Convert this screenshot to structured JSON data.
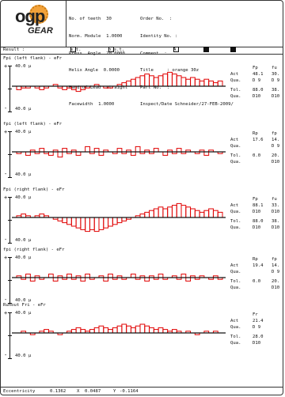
{
  "header": {
    "logo_text": "ogp",
    "logo_sub": "GEAR",
    "col1": [
      {
        "label": "No. of teeth",
        "value": "30"
      },
      {
        "label": "Norm. Module",
        "value": "1.0000"
      },
      {
        "label": "Press. Angle",
        "value": "20.0000"
      },
      {
        "label": "Helix Angle",
        "value": "0.0000"
      },
      {
        "label": "Hand of Lead",
        "value": "straight"
      },
      {
        "label": "Facewidth",
        "value": "1.0000"
      }
    ],
    "col2": [
      {
        "label": "Order No.",
        "value": ""
      },
      {
        "label": "Identity No.",
        "value": ""
      },
      {
        "label": "Comment",
        "value": ""
      },
      {
        "label": "Title",
        "value": "orange 30z"
      },
      {
        "label": "Part No.",
        "value": ""
      },
      {
        "label": "Inspect/Date",
        "value": "Schneider/27-FEB-2009/"
      }
    ]
  },
  "result_bar": {
    "label": "Result :",
    "items": [
      "s.t.",
      "n.s.t.",
      "A.",
      "V.",
      "S"
    ]
  },
  "sections": [
    {
      "title": "Fpi (left flank) - eFr",
      "scale_top": "40.0 µ",
      "scale_bot": "40.0 µ",
      "col_heads": [
        "Fp",
        "fu"
      ],
      "rows": [
        {
          "label": "Act",
          "v1": "48.1",
          "v2": "30."
        },
        {
          "label": "Qua.",
          "v1": "D 9",
          "v2": "D 9"
        },
        {
          "label": "Tol.",
          "v1": "88.0",
          "v2": "38."
        },
        {
          "label": "Qua.",
          "v1": "D10",
          "v2": "D10"
        }
      ],
      "bars": [
        -2,
        -1,
        -1,
        0,
        -1,
        -2,
        -1,
        0,
        1,
        -1,
        -2,
        -1,
        -2,
        -3,
        -2,
        -1,
        0,
        1,
        0,
        -1,
        -1,
        0,
        1,
        2,
        3,
        4,
        5,
        6,
        7,
        6,
        5,
        6,
        7,
        8,
        7,
        6,
        5,
        4,
        5,
        4,
        3,
        4,
        3,
        2,
        3
      ]
    },
    {
      "title": "fpi (left flank) - eFr",
      "scale_top": "40.0 µ",
      "scale_bot": "40.0 µ",
      "col_heads": [
        "Rp",
        "fp"
      ],
      "rows": [
        {
          "label": "Act",
          "v1": "17.6",
          "v2": "14."
        },
        {
          "label": "Qua.",
          "v1": "",
          "v2": "D 9"
        },
        {
          "label": "Tol.",
          "v1": "0.0",
          "v2": "20."
        },
        {
          "label": "Qua.",
          "v1": "",
          "v2": "D10"
        }
      ],
      "bars": [
        -1,
        0,
        -2,
        1,
        -1,
        2,
        -1,
        -2,
        1,
        -3,
        2,
        -1,
        1,
        -2,
        0,
        3,
        -1,
        2,
        -2,
        1,
        0,
        -1,
        2,
        -1,
        1,
        -2,
        3,
        -1,
        1,
        -1,
        2,
        0,
        -2,
        1,
        -1,
        2,
        -1,
        1,
        0,
        -1,
        1,
        -2,
        1,
        0,
        -1
      ]
    },
    {
      "title": "Fpi (right flank) - eFr",
      "scale_top": "40.0 µ",
      "scale_bot": "40.0 µ",
      "col_heads": [
        "Fp",
        "fu"
      ],
      "rows": [
        {
          "label": "Act",
          "v1": "88.1",
          "v2": "33."
        },
        {
          "label": "Qua.",
          "v1": "D10",
          "v2": "D10"
        },
        {
          "label": "Tol.",
          "v1": "88.0",
          "v2": "38."
        },
        {
          "label": "Qua.",
          "v1": "D10",
          "v2": "D10"
        }
      ],
      "bars": [
        1,
        2,
        1,
        0,
        1,
        2,
        1,
        0,
        -1,
        -2,
        -3,
        -4,
        -5,
        -6,
        -7,
        -8,
        -7,
        -8,
        -7,
        -6,
        -5,
        -4,
        -3,
        -2,
        -1,
        0,
        1,
        2,
        3,
        4,
        5,
        6,
        5,
        6,
        7,
        8,
        7,
        6,
        5,
        4,
        3,
        4,
        5,
        4,
        3
      ]
    },
    {
      "title": "fpi (right flank) - eFr",
      "scale_top": "40.0 µ",
      "scale_bot": "40.0 µ",
      "col_heads": [
        "Rp",
        "fp"
      ],
      "rows": [
        {
          "label": "Act",
          "v1": "19.4",
          "v2": "14."
        },
        {
          "label": "Qua.",
          "v1": "",
          "v2": "D 9"
        },
        {
          "label": "Tol.",
          "v1": "0.0",
          "v2": "20."
        },
        {
          "label": "Qua.",
          "v1": "",
          "v2": "D10"
        }
      ],
      "bars": [
        1,
        -1,
        2,
        -2,
        1,
        -1,
        0,
        2,
        -2,
        1,
        -1,
        2,
        -1,
        1,
        -2,
        2,
        -1,
        0,
        1,
        -2,
        2,
        -1,
        1,
        -1,
        0,
        2,
        -1,
        1,
        -2,
        1,
        -1,
        2,
        -1,
        0,
        1,
        -1,
        2,
        -2,
        1,
        -1,
        1,
        0,
        -1,
        1,
        -1
      ]
    },
    {
      "title": "Runout  Fri - eFr",
      "scale_top": "40.0 µ",
      "scale_bot": "40.0 µ",
      "col_heads": [
        "Fr",
        ""
      ],
      "rows": [
        {
          "label": "Act",
          "v1": "21.4",
          "v2": ""
        },
        {
          "label": "Qua.",
          "v1": "D 9",
          "v2": ""
        },
        {
          "label": "Tol.",
          "v1": "28.0",
          "v2": ""
        },
        {
          "label": "Qua.",
          "v1": "D10",
          "v2": ""
        }
      ],
      "bars": [
        0,
        1,
        0,
        -1,
        0,
        1,
        2,
        1,
        0,
        -1,
        0,
        1,
        2,
        3,
        2,
        1,
        2,
        3,
        4,
        3,
        2,
        3,
        4,
        5,
        4,
        3,
        4,
        5,
        4,
        3,
        2,
        3,
        2,
        1,
        2,
        1,
        0,
        1,
        0,
        -1,
        0,
        1,
        0,
        1,
        0
      ]
    }
  ],
  "footer": {
    "ecc_label": "Eccentricity",
    "ecc_value": "0.1362",
    "x_label": "X",
    "x_value": "0.0487",
    "y_label": "Y",
    "y_value": "-0.1164"
  }
}
